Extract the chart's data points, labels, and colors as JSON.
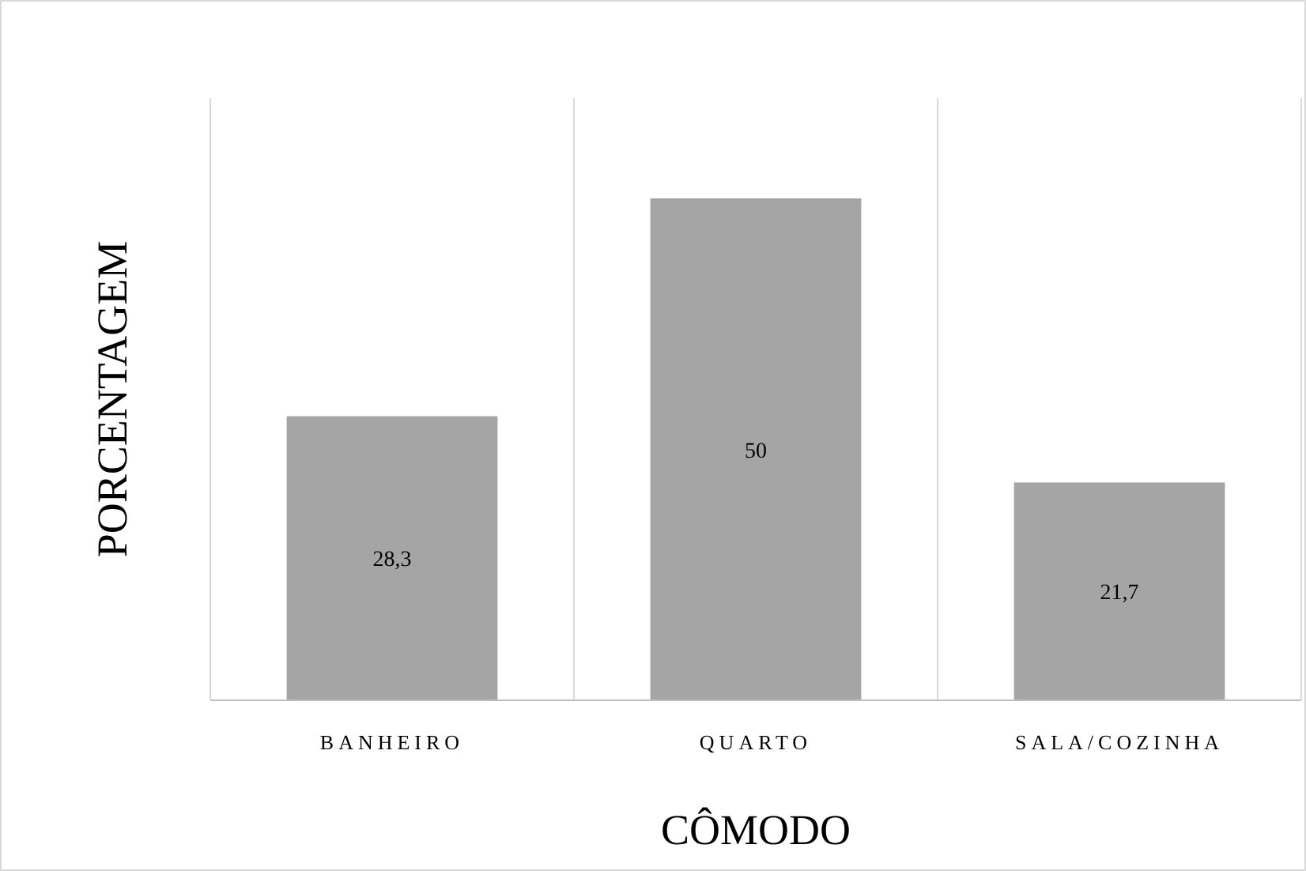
{
  "chart_data": {
    "type": "bar",
    "xlabel": "CÔMODO",
    "ylabel": "PORCENTAGEM",
    "categories": [
      "BANHEIRO",
      "QUARTO",
      "SALA/COZINHA"
    ],
    "values": [
      28.3,
      50,
      21.7
    ],
    "value_labels": [
      "28,3",
      "50",
      "21,7"
    ],
    "color": "#a5a5a5",
    "ylim": [
      0,
      60
    ],
    "tick_labels": "x",
    "grid": "x"
  }
}
